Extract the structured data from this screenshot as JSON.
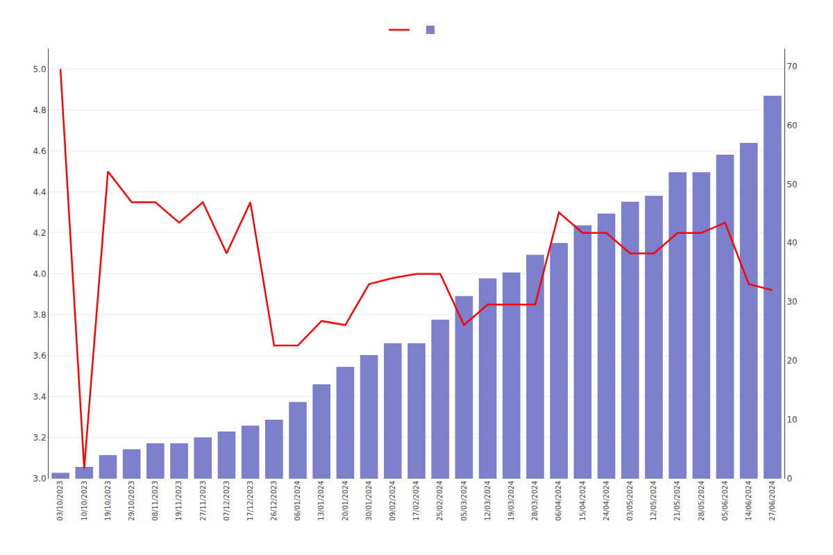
{
  "chart_data": {
    "type": "bar",
    "categories": [
      "03/10/2023",
      "10/10/2023",
      "19/10/2023",
      "29/10/2023",
      "08/11/2023",
      "19/11/2023",
      "27/11/2023",
      "07/12/2023",
      "17/12/2023",
      "26/12/2023",
      "06/01/2024",
      "13/01/2024",
      "20/01/2024",
      "30/01/2024",
      "09/02/2024",
      "17/02/2024",
      "25/02/2024",
      "05/03/2024",
      "12/03/2024",
      "19/03/2024",
      "28/03/2024",
      "06/04/2024",
      "15/04/2024",
      "24/04/2024",
      "03/05/2024",
      "12/05/2024",
      "21/05/2024",
      "28/05/2024",
      "05/06/2024",
      "14/06/2024",
      "27/06/2024"
    ],
    "series": [
      {
        "type": "line",
        "color": "#ff0000",
        "values": [
          5.0,
          3.05,
          4.5,
          4.35,
          4.35,
          4.25,
          4.35,
          4.1,
          4.35,
          3.65,
          3.65,
          3.77,
          3.75,
          3.95,
          3.98,
          4.0,
          4.0,
          3.75,
          3.85,
          3.85,
          3.85,
          4.3,
          4.2,
          4.2,
          4.1,
          4.1,
          4.2,
          4.2,
          4.25,
          3.95,
          3.92
        ]
      },
      {
        "type": "bar",
        "color": "#7b7fcc",
        "axis": "y2",
        "values": [
          1,
          2,
          4,
          5,
          6,
          6,
          7,
          8,
          9,
          10,
          13,
          16,
          19,
          21,
          23,
          23,
          27,
          31,
          34,
          35,
          38,
          40,
          43,
          45,
          47,
          48,
          52,
          52,
          55,
          57,
          65
        ]
      }
    ],
    "ylim": [
      3.0,
      5.1
    ],
    "yticks": [
      {
        "value": 3.0,
        "label": "3.0"
      },
      3.2,
      3.4,
      3.6,
      3.8,
      {
        "value": 4.0,
        "label": "4.0"
      },
      4.2,
      4.4,
      4.6,
      4.8,
      {
        "value": 5.0,
        "label": "5.0"
      }
    ],
    "y2lim": [
      0,
      73
    ],
    "y2ticks": [
      0,
      10,
      20,
      30,
      40,
      50,
      60,
      70
    ],
    "grid": true,
    "legend": "top"
  }
}
